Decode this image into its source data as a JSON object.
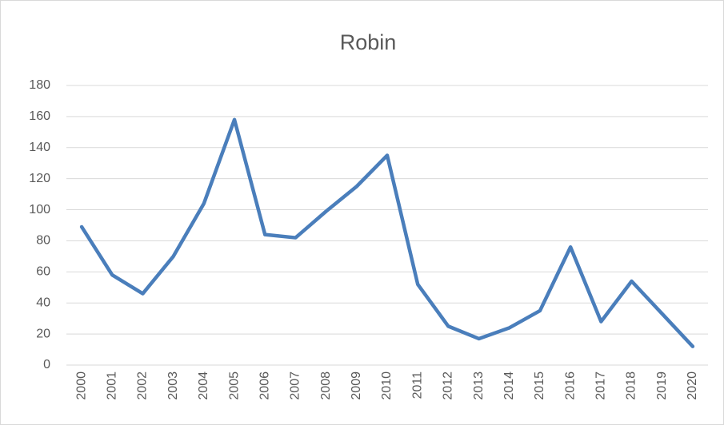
{
  "chart_data": {
    "type": "line",
    "title": "Robin",
    "categories": [
      "2000",
      "2001",
      "2002",
      "2003",
      "2004",
      "2005",
      "2006",
      "2007",
      "2008",
      "2009",
      "2010",
      "2011",
      "2012",
      "2013",
      "2014",
      "2015",
      "2016",
      "2017",
      "2018",
      "2019",
      "2020"
    ],
    "values": [
      89,
      58,
      46,
      70,
      104,
      158,
      84,
      82,
      99,
      115,
      135,
      52,
      25,
      17,
      24,
      35,
      76,
      28,
      54,
      33,
      12
    ],
    "color": "#4a7ebb",
    "ylim": [
      0,
      180
    ],
    "yticks": [
      0,
      20,
      40,
      60,
      80,
      100,
      120,
      140,
      160,
      180
    ],
    "grid": true
  }
}
